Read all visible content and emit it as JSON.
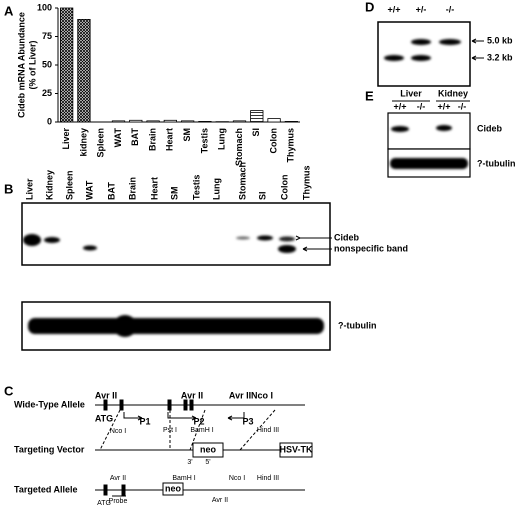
{
  "panel_labels": [
    "A",
    "B",
    "C",
    "D",
    "E"
  ],
  "chart_data": {
    "type": "bar",
    "ylabel": [
      "Cideb mRNA Abundance",
      "(% of Liver)"
    ],
    "categories": [
      "Liver",
      "kidney",
      "Spleen",
      "WAT",
      "BAT",
      "Brain",
      "Heart",
      "SM",
      "Testis",
      "Lung",
      "Stomach",
      "SI",
      "Colon",
      "Thymus"
    ],
    "values": [
      100,
      90,
      0,
      1,
      1.5,
      1,
      1.5,
      1,
      0.5,
      0.3,
      1,
      10,
      3,
      0.5
    ],
    "color": "#000000",
    "ylim": [
      0,
      100
    ],
    "yticks": [
      0,
      25,
      50,
      75,
      100
    ],
    "grid": false
  },
  "blot_b": {
    "lanes": [
      "Liver",
      "Kidney",
      "Spleen",
      "WAT",
      "BAT",
      "Brain",
      "Heart",
      "SM",
      "Testis",
      "Lung",
      "Stomach",
      "SI",
      "Colon",
      "Thymus"
    ],
    "bands": [
      "Cideb",
      "nonspecific band"
    ],
    "loading": "?-tubulin"
  },
  "diagram_c": {
    "rows": [
      "Wide-Type Allele",
      "Targeting Vector",
      "Targeted Allele"
    ],
    "labels": [
      "Avr II",
      "ATG",
      "Nco I",
      "P1",
      "Pst I",
      "Avr II",
      "P2",
      "BamH I",
      "Avr II",
      "Nco I",
      "P3",
      "Hind III",
      "neo",
      "3'",
      "5'",
      "HSV-TK",
      "Avr II",
      "Probe",
      "ATG",
      "BamH I",
      "neo",
      "Nco I",
      "Avr II",
      "Hind III"
    ]
  },
  "blot_d": {
    "genotypes": [
      "+/+",
      "+/-",
      "-/-"
    ],
    "sizes": [
      "5.0 kb",
      "3.2 kb"
    ]
  },
  "blot_e": {
    "tissues": [
      "Liver",
      "Kidney"
    ],
    "genotypes": [
      "+/+",
      "-/-",
      "+/+",
      "-/-"
    ],
    "bands": [
      "Cideb",
      "?-tubulin"
    ]
  }
}
